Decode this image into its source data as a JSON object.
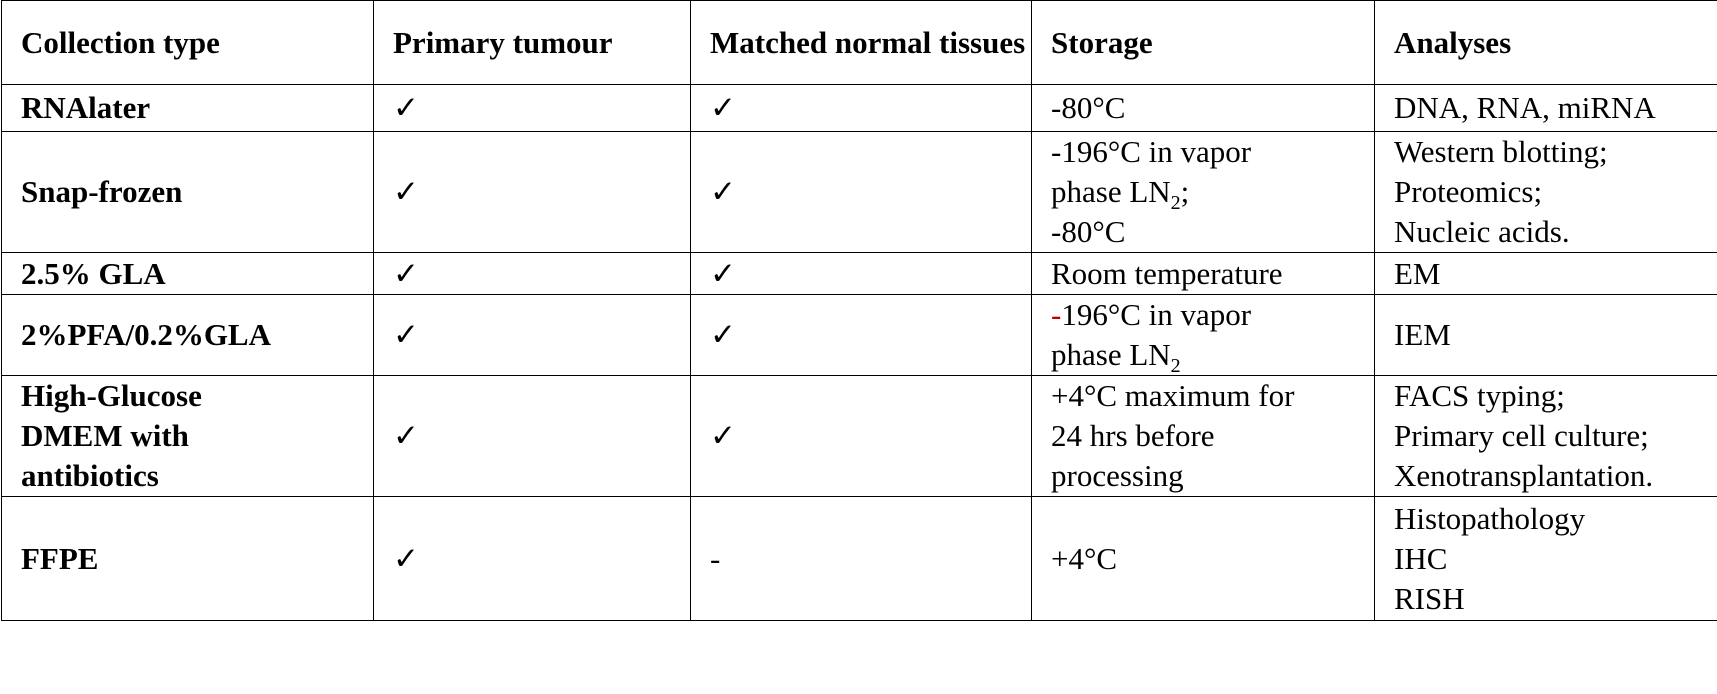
{
  "table": {
    "headers": {
      "collection_type": "Collection type",
      "primary_tumour": "Primary tumour",
      "matched_normal": "Matched normal tissues",
      "storage": "Storage",
      "analyses": "Analyses"
    },
    "rows": [
      {
        "collection_type": [
          "RNAlater"
        ],
        "primary_tumour": "✓",
        "matched_normal": "✓",
        "storage": [
          "-80°C"
        ],
        "analyses": [
          "DNA, RNA, miRNA"
        ]
      },
      {
        "collection_type": [
          "Snap-frozen"
        ],
        "primary_tumour": "✓",
        "matched_normal": "✓",
        "storage": [
          "-196°C in vapor",
          "phase LN",
          "2",
          ";",
          "-80°C"
        ],
        "analyses": [
          "Western blotting;",
          "Proteomics;",
          "Nucleic acids."
        ]
      },
      {
        "collection_type": [
          "2.5% GLA"
        ],
        "primary_tumour": "✓",
        "matched_normal": "✓",
        "storage": [
          "Room temperature"
        ],
        "analyses": [
          "EM"
        ]
      },
      {
        "collection_type": [
          "2%PFA/0.2%GLA"
        ],
        "primary_tumour": "✓",
        "matched_normal": "✓",
        "storage": [
          "-",
          "196°C in vapor",
          "phase LN",
          "2"
        ],
        "analyses": [
          "IEM"
        ]
      },
      {
        "collection_type": [
          "High-Glucose",
          "DMEM with",
          "antibiotics"
        ],
        "primary_tumour": "✓",
        "matched_normal": "✓",
        "storage": [
          "+4°C maximum for",
          "24 hrs before",
          "processing"
        ],
        "analyses": [
          "FACS typing;",
          "Primary cell culture;",
          "Xenotransplantation."
        ]
      },
      {
        "collection_type": [
          "FFPE"
        ],
        "primary_tumour": "✓",
        "matched_normal": "-",
        "storage": [
          "+4°C"
        ],
        "analyses": [
          "Histopathology",
          "IHC",
          "RISH"
        ]
      }
    ]
  },
  "colors": {
    "text": "#000000",
    "border": "#000000",
    "highlight_dash": "#c00000"
  }
}
